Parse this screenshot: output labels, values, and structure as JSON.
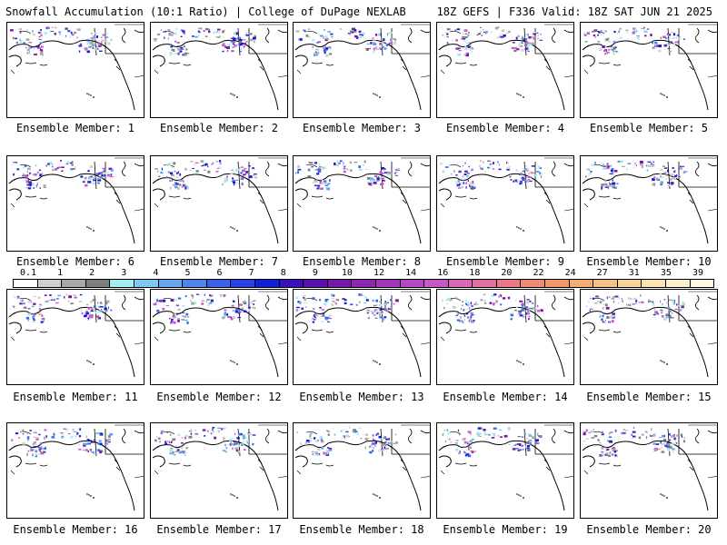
{
  "header": {
    "title_left": "Snowfall Accumulation (10:1 Ratio) | College of DuPage NEXLAB",
    "title_right": "18Z GEFS | F336 Valid: 18Z SAT JUN 21 2025"
  },
  "colorbar": {
    "ticks": [
      "0.1",
      "1",
      "2",
      "3",
      "4",
      "5",
      "6",
      "7",
      "8",
      "9",
      "10",
      "12",
      "14",
      "16",
      "18",
      "20",
      "22",
      "24",
      "27",
      "31",
      "35",
      "39"
    ],
    "colors": [
      "#ffffff",
      "#d0d0d0",
      "#a8a8a8",
      "#7e7e7e",
      "#a0eef2",
      "#80c8f0",
      "#6aa6ee",
      "#4f84ec",
      "#3a62e8",
      "#2742e0",
      "#1020d8",
      "#3a10b8",
      "#5a10a8",
      "#7418a8",
      "#8c28b0",
      "#a038b8",
      "#b448c0",
      "#c858c8",
      "#d868b8",
      "#e070a0",
      "#e87a88",
      "#ee8a74",
      "#f19a68",
      "#f4ad74",
      "#f6c088",
      "#f8d49c",
      "#fae4b4",
      "#fcf0cc",
      "#fef8e4"
    ]
  },
  "members": [
    {
      "label": "Ensemble Member: 1"
    },
    {
      "label": "Ensemble Member: 2"
    },
    {
      "label": "Ensemble Member: 3"
    },
    {
      "label": "Ensemble Member: 4"
    },
    {
      "label": "Ensemble Member: 5"
    },
    {
      "label": "Ensemble Member: 6"
    },
    {
      "label": "Ensemble Member: 7"
    },
    {
      "label": "Ensemble Member: 8"
    },
    {
      "label": "Ensemble Member: 9"
    },
    {
      "label": "Ensemble Member: 10"
    },
    {
      "label": "Ensemble Member: 11"
    },
    {
      "label": "Ensemble Member: 12"
    },
    {
      "label": "Ensemble Member: 13"
    },
    {
      "label": "Ensemble Member: 14"
    },
    {
      "label": "Ensemble Member: 15"
    },
    {
      "label": "Ensemble Member: 16"
    },
    {
      "label": "Ensemble Member: 17"
    },
    {
      "label": "Ensemble Member: 18"
    },
    {
      "label": "Ensemble Member: 19"
    },
    {
      "label": "Ensemble Member: 20"
    }
  ]
}
